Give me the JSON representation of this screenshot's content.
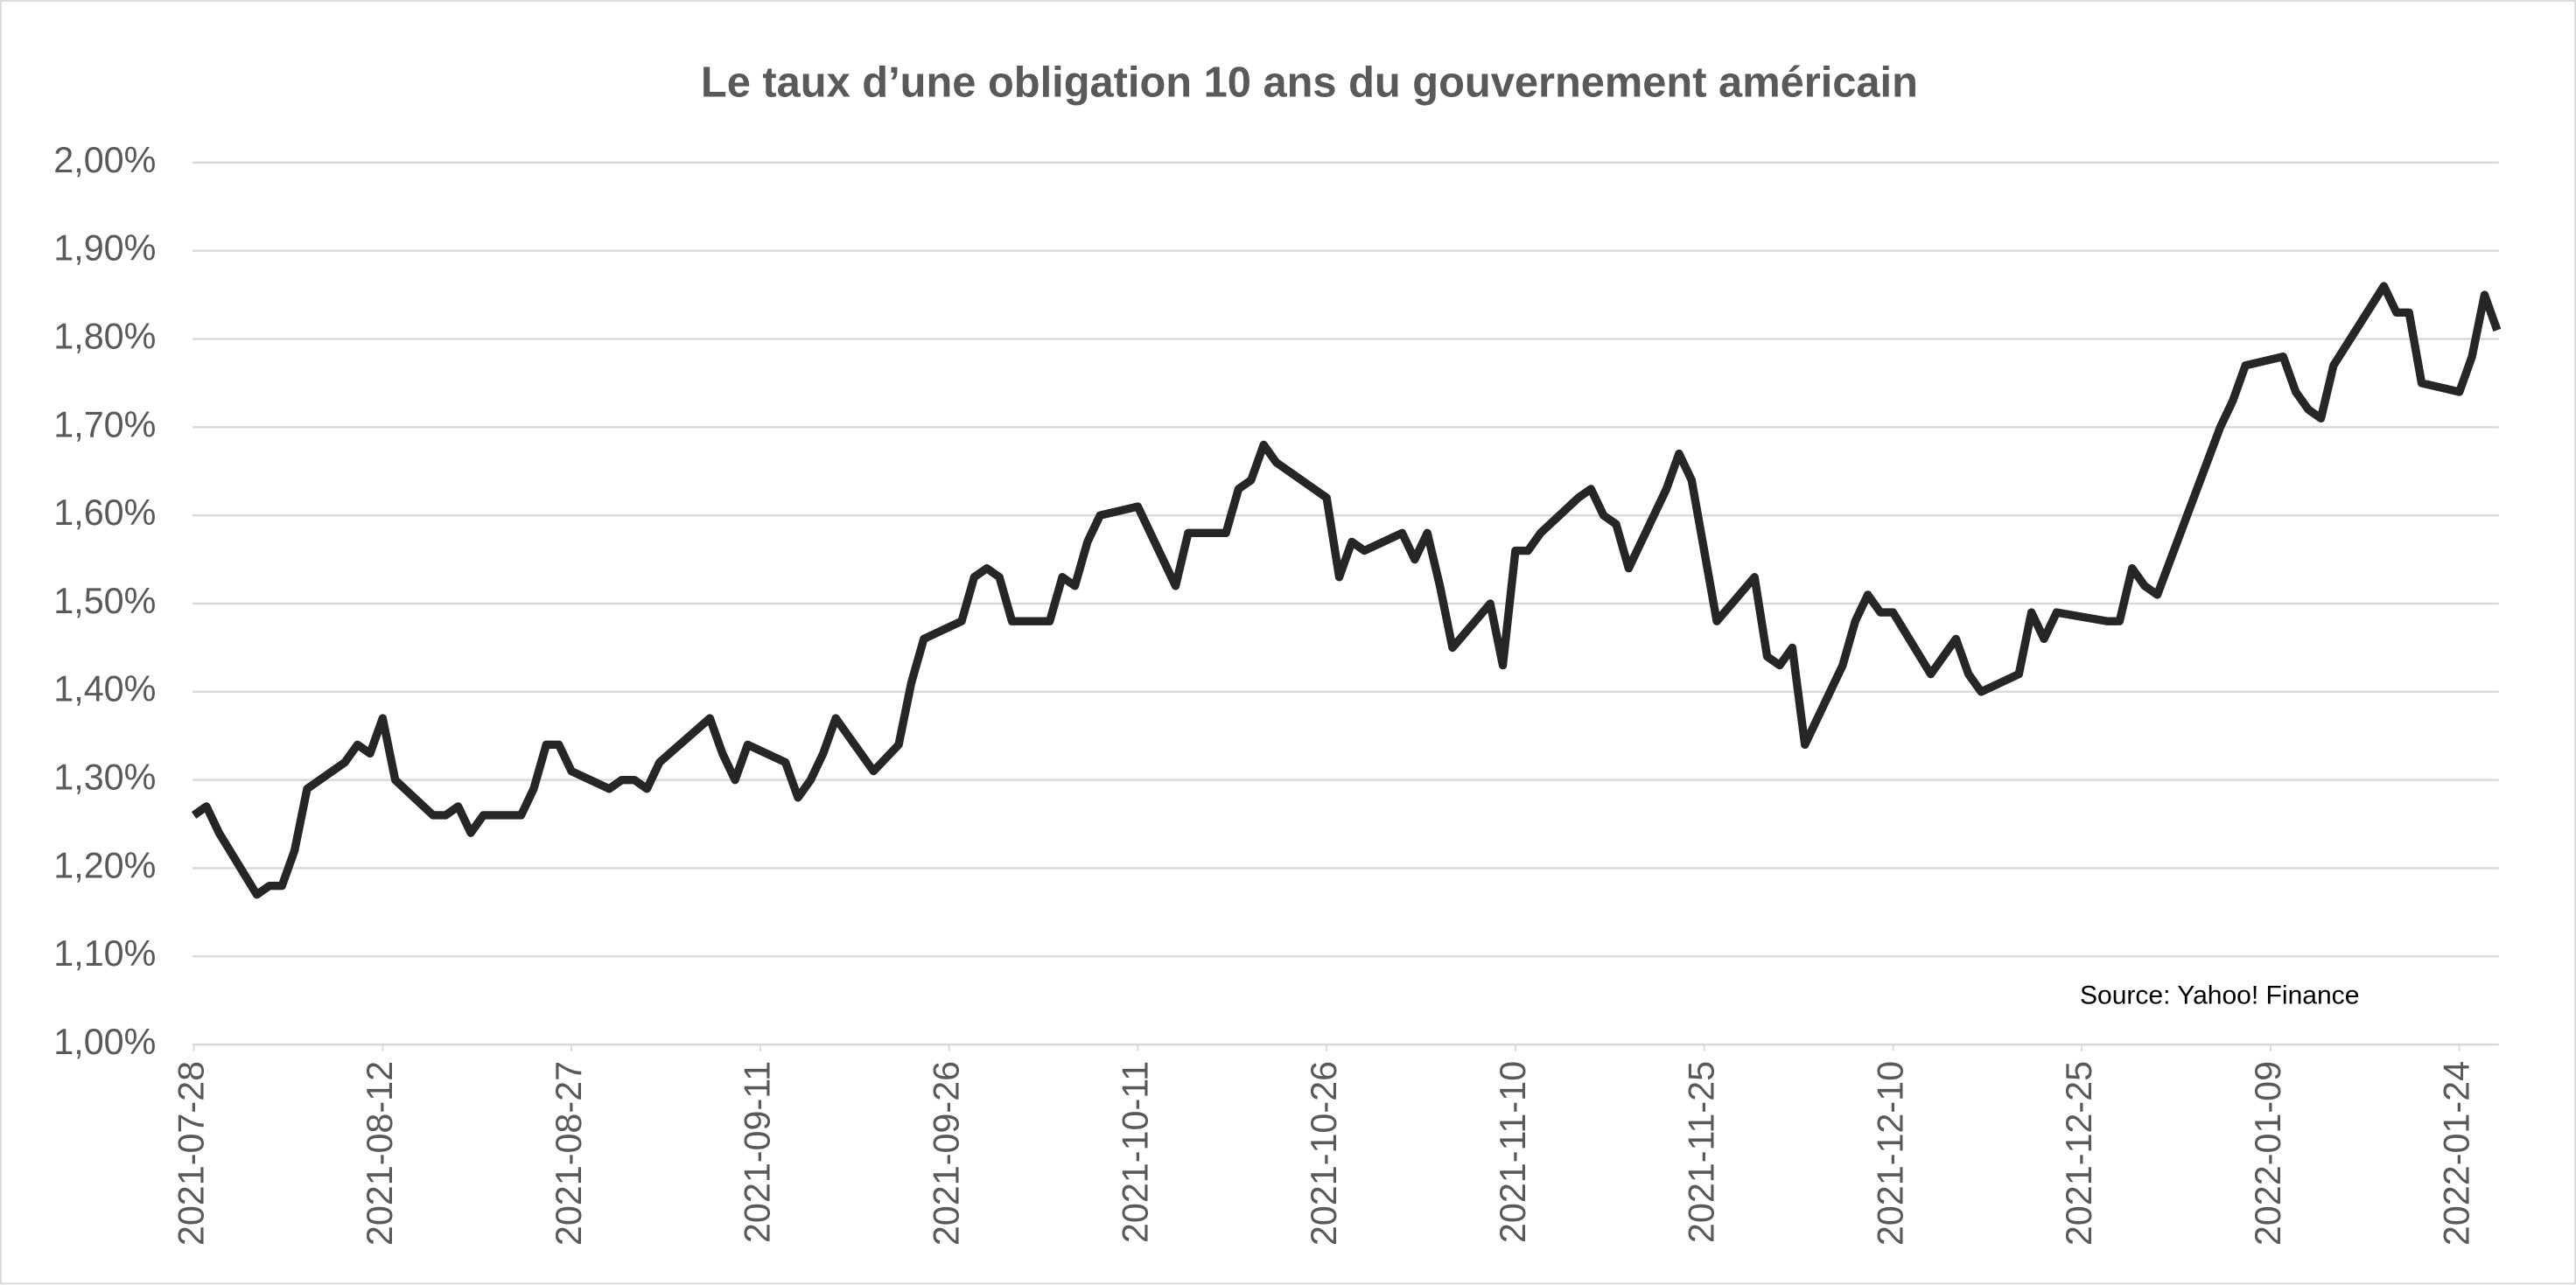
{
  "chart_data": {
    "type": "line",
    "title": "Le taux d’une obligation 10 ans du gouvernement américain",
    "annotation": "Source: Yahoo! Finance",
    "x": [
      "2021-07-28",
      "2021-07-29",
      "2021-07-30",
      "2021-08-02",
      "2021-08-03",
      "2021-08-04",
      "2021-08-05",
      "2021-08-06",
      "2021-08-09",
      "2021-08-10",
      "2021-08-11",
      "2021-08-12",
      "2021-08-13",
      "2021-08-16",
      "2021-08-17",
      "2021-08-18",
      "2021-08-19",
      "2021-08-20",
      "2021-08-23",
      "2021-08-24",
      "2021-08-25",
      "2021-08-26",
      "2021-08-27",
      "2021-08-30",
      "2021-08-31",
      "2021-09-01",
      "2021-09-02",
      "2021-09-03",
      "2021-09-07",
      "2021-09-08",
      "2021-09-09",
      "2021-09-10",
      "2021-09-13",
      "2021-09-14",
      "2021-09-15",
      "2021-09-16",
      "2021-09-17",
      "2021-09-20",
      "2021-09-22",
      "2021-09-23",
      "2021-09-24",
      "2021-09-27",
      "2021-09-28",
      "2021-09-29",
      "2021-09-30",
      "2021-10-01",
      "2021-10-04",
      "2021-10-05",
      "2021-10-06",
      "2021-10-07",
      "2021-10-08",
      "2021-10-11",
      "2021-10-14",
      "2021-10-15",
      "2021-10-18",
      "2021-10-19",
      "2021-10-20",
      "2021-10-21",
      "2021-10-22",
      "2021-10-25",
      "2021-10-26",
      "2021-10-27",
      "2021-10-28",
      "2021-10-29",
      "2021-11-01",
      "2021-11-02",
      "2021-11-03",
      "2021-11-04",
      "2021-11-05",
      "2021-11-08",
      "2021-11-09",
      "2021-11-10",
      "2021-11-11",
      "2021-11-12",
      "2021-11-15",
      "2021-11-16",
      "2021-11-17",
      "2021-11-18",
      "2021-11-19",
      "2021-11-22",
      "2021-11-23",
      "2021-11-24",
      "2021-11-26",
      "2021-11-29",
      "2021-11-30",
      "2021-12-01",
      "2021-12-02",
      "2021-12-03",
      "2021-12-06",
      "2021-12-07",
      "2021-12-08",
      "2021-12-09",
      "2021-12-10",
      "2021-12-13",
      "2021-12-14",
      "2021-12-15",
      "2021-12-16",
      "2021-12-17",
      "2021-12-20",
      "2021-12-21",
      "2021-12-22",
      "2021-12-23",
      "2021-12-27",
      "2021-12-28",
      "2021-12-29",
      "2021-12-30",
      "2021-12-31",
      "2022-01-05",
      "2022-01-06",
      "2022-01-07",
      "2022-01-10",
      "2022-01-11",
      "2022-01-12",
      "2022-01-13",
      "2022-01-14",
      "2022-01-18",
      "2022-01-19",
      "2022-01-20",
      "2022-01-21",
      "2022-01-24",
      "2022-01-25",
      "2022-01-26",
      "2022-01-27"
    ],
    "series": [
      {
        "color": "#262626",
        "values": [
          1.26,
          1.27,
          1.24,
          1.17,
          1.18,
          1.18,
          1.22,
          1.29,
          1.32,
          1.34,
          1.33,
          1.37,
          1.3,
          1.26,
          1.26,
          1.27,
          1.24,
          1.26,
          1.26,
          1.29,
          1.34,
          1.34,
          1.31,
          1.29,
          1.3,
          1.3,
          1.29,
          1.32,
          1.37,
          1.33,
          1.3,
          1.34,
          1.32,
          1.28,
          1.3,
          1.33,
          1.37,
          1.31,
          1.34,
          1.41,
          1.46,
          1.48,
          1.53,
          1.54,
          1.53,
          1.48,
          1.48,
          1.53,
          1.52,
          1.57,
          1.6,
          1.61,
          1.52,
          1.58,
          1.58,
          1.63,
          1.64,
          1.68,
          1.66,
          1.63,
          1.62,
          1.53,
          1.57,
          1.56,
          1.58,
          1.55,
          1.58,
          1.52,
          1.45,
          1.5,
          1.43,
          1.56,
          1.56,
          1.58,
          1.62,
          1.63,
          1.6,
          1.59,
          1.54,
          1.63,
          1.67,
          1.64,
          1.48,
          1.53,
          1.44,
          1.43,
          1.45,
          1.34,
          1.43,
          1.48,
          1.51,
          1.49,
          1.49,
          1.42,
          1.44,
          1.46,
          1.42,
          1.4,
          1.42,
          1.49,
          1.46,
          1.49,
          1.48,
          1.48,
          1.54,
          1.52,
          1.51,
          1.7,
          1.73,
          1.77,
          1.78,
          1.74,
          1.72,
          1.71,
          1.77,
          1.86,
          1.83,
          1.83,
          1.75,
          1.74,
          1.78,
          1.85,
          1.81
        ]
      }
    ],
    "xlim": [
      "2021-07-28",
      "2022-01-27"
    ],
    "xticks": [
      "2021-07-28",
      "2021-08-12",
      "2021-08-27",
      "2021-09-11",
      "2021-09-26",
      "2021-10-11",
      "2021-10-26",
      "2021-11-10",
      "2021-11-25",
      "2021-12-10",
      "2021-12-25",
      "2022-01-09",
      "2022-01-24"
    ],
    "ylim": [
      1,
      2
    ],
    "yticks": [
      {
        "value": 1,
        "label": "1,00%"
      },
      {
        "value": 1.1,
        "label": "1,10%"
      },
      {
        "value": 1.2,
        "label": "1,20%"
      },
      {
        "value": 1.3,
        "label": "1,30%"
      },
      {
        "value": 1.4,
        "label": "1,40%"
      },
      {
        "value": 1.5,
        "label": "1,50%"
      },
      {
        "value": 1.6,
        "label": "1,60%"
      },
      {
        "value": 1.7,
        "label": "1,70%"
      },
      {
        "value": 1.8,
        "label": "1,80%"
      },
      {
        "value": 1.9,
        "label": "1,90%"
      },
      {
        "value": 2,
        "label": "2,00%"
      }
    ],
    "grid": true
  }
}
